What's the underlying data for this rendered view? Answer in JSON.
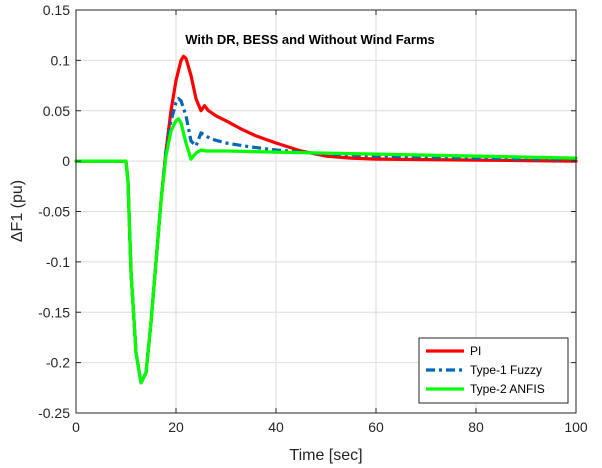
{
  "chart_data": {
    "type": "line",
    "title": "With DR, BESS and Without Wind Farms",
    "xlabel": "Time [sec]",
    "ylabel": "ΔF1 (pu)",
    "xlim": [
      0,
      100
    ],
    "ylim": [
      -0.25,
      0.15
    ],
    "xticks": [
      0,
      20,
      40,
      60,
      80,
      100
    ],
    "xtick_labels": [
      "0",
      "20",
      "40",
      "60",
      "80",
      "100"
    ],
    "yticks": [
      0.15,
      0.1,
      0.05,
      0,
      -0.05,
      -0.1,
      -0.15,
      -0.2,
      -0.25
    ],
    "ytick_labels": [
      "0.15",
      "0.1",
      "0.05",
      "0",
      "-0.05",
      "-0.1",
      "-0.15",
      "-0.2",
      "-0.25"
    ],
    "grid": true,
    "legend_position": "bottom-right",
    "series": [
      {
        "name": "PI",
        "color": "#ff0000",
        "style": "solid",
        "x": [
          0,
          10,
          10.4,
          11,
          12,
          13,
          14,
          15,
          16,
          17,
          18,
          19,
          20,
          21,
          21.5,
          22,
          23,
          24,
          25,
          25.7,
          26.5,
          28,
          30,
          33,
          36,
          40,
          45,
          50,
          55,
          60,
          70,
          80,
          90,
          100
        ],
        "y": [
          0,
          0,
          -0.02,
          -0.11,
          -0.19,
          -0.22,
          -0.21,
          -0.16,
          -0.1,
          -0.04,
          0.01,
          0.05,
          0.08,
          0.1,
          0.104,
          0.102,
          0.085,
          0.062,
          0.05,
          0.055,
          0.05,
          0.045,
          0.04,
          0.032,
          0.025,
          0.018,
          0.01,
          0.005,
          0.003,
          0.002,
          0.0015,
          0.001,
          0.0005,
          0
        ]
      },
      {
        "name": "Type-1 Fuzzy",
        "color": "#0066b8",
        "style": "dashdot",
        "x": [
          0,
          10,
          10.4,
          11,
          12,
          13,
          14,
          15,
          16,
          17,
          18,
          19,
          20,
          20.5,
          21,
          22,
          23,
          24,
          25,
          26,
          27,
          30,
          35,
          40,
          45,
          50,
          60,
          70,
          80,
          90,
          100
        ],
        "y": [
          0,
          0,
          -0.02,
          -0.11,
          -0.19,
          -0.22,
          -0.21,
          -0.16,
          -0.1,
          -0.04,
          0.01,
          0.04,
          0.058,
          0.062,
          0.06,
          0.045,
          0.02,
          0.015,
          0.028,
          0.025,
          0.022,
          0.018,
          0.014,
          0.011,
          0.009,
          0.007,
          0.005,
          0.004,
          0.003,
          0.002,
          0.002
        ]
      },
      {
        "name": "Type-2 ANFIS",
        "color": "#00ff00",
        "style": "solid",
        "x": [
          0,
          10,
          10.4,
          11,
          12,
          13,
          14,
          15,
          16,
          17,
          18,
          19,
          20,
          20.5,
          21,
          22,
          23,
          24,
          25,
          26,
          30,
          40,
          50,
          60,
          70,
          80,
          90,
          100
        ],
        "y": [
          0,
          0,
          -0.02,
          -0.11,
          -0.19,
          -0.22,
          -0.21,
          -0.16,
          -0.1,
          -0.04,
          0.005,
          0.03,
          0.04,
          0.042,
          0.038,
          0.018,
          0.002,
          0.008,
          0.011,
          0.01,
          0.01,
          0.009,
          0.008,
          0.007,
          0.006,
          0.005,
          0.004,
          0.003
        ]
      }
    ]
  }
}
